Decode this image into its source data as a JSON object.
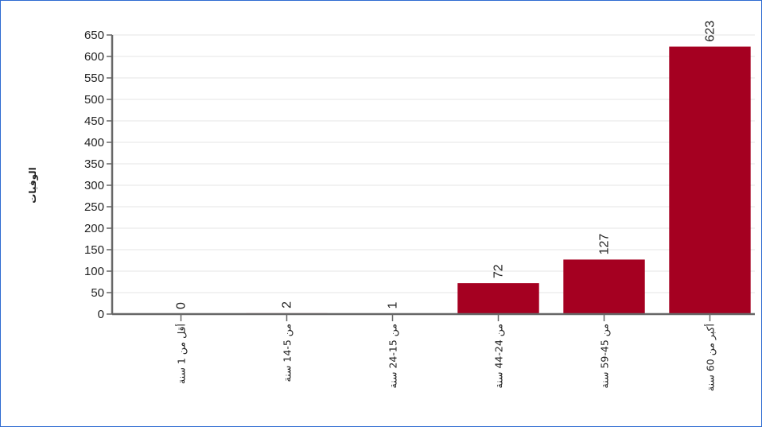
{
  "chart_data": {
    "type": "bar",
    "title": "",
    "xlabel": "",
    "ylabel": "الوفيات",
    "categories": [
      "أقل من 1 سنة",
      "من 5-14 سنة",
      "من 15-24 سنة",
      "من 24-44 سنة",
      "من 45-59 سنة",
      "أكبر من 60 سنة"
    ],
    "values": [
      0,
      2,
      1,
      72,
      127,
      623
    ],
    "data_labels": [
      "0",
      "2",
      "1",
      "72",
      "127",
      "623"
    ],
    "yticks": [
      0,
      50,
      100,
      150,
      200,
      250,
      300,
      350,
      400,
      450,
      500,
      550,
      600,
      650
    ],
    "ylim": [
      0,
      650
    ],
    "grid": true,
    "legend": "none",
    "bar_color": "#a50021",
    "axis_color": "#666666",
    "grid_color": "#e6e6e6"
  }
}
